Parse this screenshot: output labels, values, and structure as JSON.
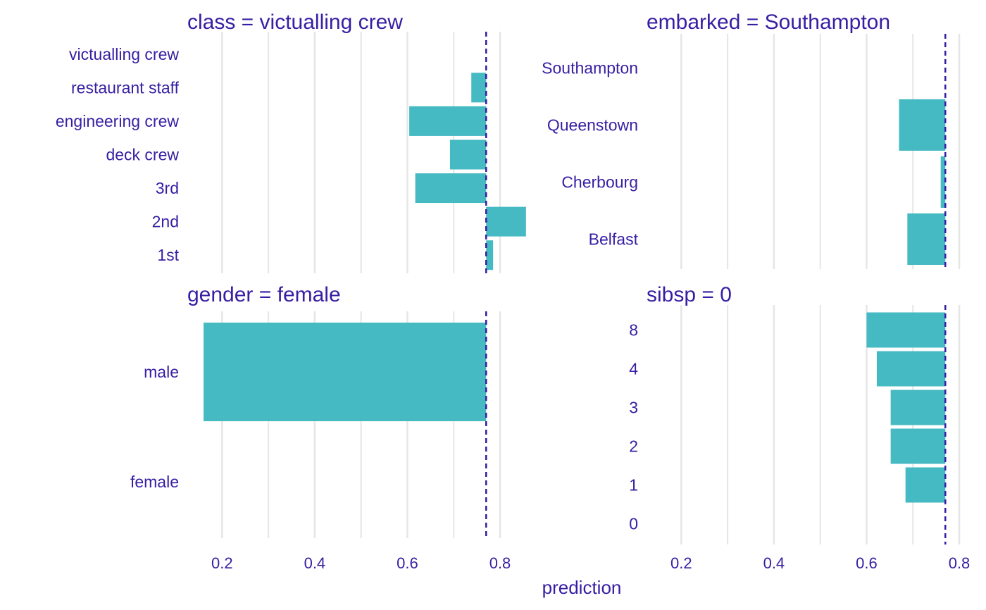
{
  "colors": {
    "text": "#371ea3",
    "bar": "#46bac2",
    "grid": "#e6e6e6",
    "reference": "#371ea3"
  },
  "chart_data": {
    "type": "bar",
    "orientation": "horizontal",
    "xlabel": "prediction",
    "xlim": [
      0.125,
      0.8
    ],
    "xticks": [
      0.2,
      0.4,
      0.6,
      0.8
    ],
    "xtick_labels": [
      "0.2",
      "0.4",
      "0.6",
      "0.8"
    ],
    "reference_value": 0.77,
    "grid": true,
    "panels": [
      {
        "title": "class = victualling crew",
        "categories": [
          "victualling crew",
          "restaurant staff",
          "engineering crew",
          "deck crew",
          "3rd",
          "2nd",
          "1st"
        ],
        "values": [
          0.77,
          0.738,
          0.604,
          0.692,
          0.617,
          0.856,
          0.785
        ]
      },
      {
        "title": "embarked = Southampton",
        "categories": [
          "Southampton",
          "Queenstown",
          "Cherbourg",
          "Belfast"
        ],
        "values": [
          0.77,
          0.67,
          0.76,
          0.688
        ]
      },
      {
        "title": "gender = female",
        "categories": [
          "male",
          "female"
        ],
        "values": [
          0.16,
          0.77
        ]
      },
      {
        "title": "sibsp = 0",
        "categories": [
          "8",
          "4",
          "3",
          "2",
          "1",
          "0"
        ],
        "values": [
          0.6,
          0.622,
          0.652,
          0.652,
          0.684,
          0.77
        ]
      }
    ]
  }
}
